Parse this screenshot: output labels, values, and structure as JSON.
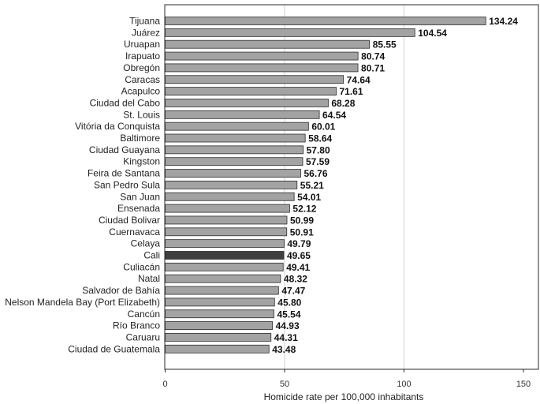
{
  "chart_data": {
    "type": "bar",
    "orientation": "horizontal",
    "title": "",
    "xlabel": "Homicide rate per 100,000 inhabitants",
    "ylabel": "",
    "xlim": [
      0,
      150
    ],
    "xticks": [
      0,
      50,
      100,
      150
    ],
    "grid": "vertical",
    "legend": "none",
    "colors": {
      "bar": "#a3a3a3",
      "highlight": "#3f3f3f",
      "bar_stroke": "#2b2b2b",
      "grid": "#d0d0d0"
    },
    "highlight_category": "Cali",
    "categories": [
      "Tijuana",
      "Juárez",
      "Uruapan",
      "Irapuato",
      "Obregón",
      "Caracas",
      "Acapulco",
      "Ciudad del Cabo",
      "St. Louis",
      "Vitória da Conquista",
      "Baltimore",
      "Ciudad Guayana",
      "Kingston",
      "Feira de Santana",
      "San Pedro Sula",
      "San Juan",
      "Ensenada",
      "Ciudad Bolivar",
      "Cuernavaca",
      "Celaya",
      "Cali",
      "Culiacán",
      "Natal",
      "Salvador de Bahía",
      "Nelson Mandela Bay (Port Elizabeth)",
      "Cancún",
      "Río Branco",
      "Caruaru",
      "Ciudad de Guatemala"
    ],
    "values": [
      134.24,
      104.54,
      85.55,
      80.74,
      80.71,
      74.64,
      71.61,
      68.28,
      64.54,
      60.01,
      58.64,
      57.8,
      57.59,
      56.76,
      55.21,
      54.01,
      52.12,
      50.99,
      50.91,
      49.79,
      49.65,
      49.41,
      48.32,
      47.47,
      45.8,
      45.54,
      44.93,
      44.31,
      43.48
    ],
    "value_labels": [
      "134.24",
      "104.54",
      "85.55",
      "80.74",
      "80.71",
      "74.64",
      "71.61",
      "68.28",
      "64.54",
      "60.01",
      "58.64",
      "57.80",
      "57.59",
      "56.76",
      "55.21",
      "54.01",
      "52.12",
      "50.99",
      "50.91",
      "49.79",
      "49.65",
      "49.41",
      "48.32",
      "47.47",
      "45.80",
      "45.54",
      "44.93",
      "44.31",
      "43.48"
    ]
  }
}
